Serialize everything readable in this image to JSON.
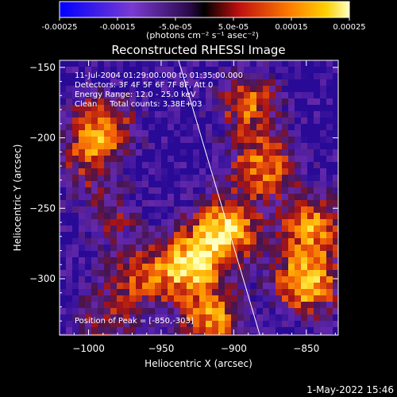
{
  "colorbar": {
    "tick_labels": [
      "-0.00025",
      "-0.00015",
      "-5.0e-05",
      "5.0e-05",
      "0.00015",
      "0.00025"
    ],
    "tick_values": [
      -0.00025,
      -0.00015,
      -5e-05,
      5e-05,
      0.00015,
      0.00025
    ],
    "range": [
      -0.00025,
      0.00025
    ],
    "units_label": "(photons cm⁻² s⁻¹ asec⁻²)"
  },
  "chart_data": {
    "type": "heatmap",
    "title": "Reconstructed RHESSI Image",
    "xlabel": "Heliocentric X (arcsec)",
    "ylabel": "Heliocentric Y (arcsec)",
    "xlim": [
      -1020,
      -828
    ],
    "ylim": [
      -340,
      -145
    ],
    "xticks": [
      -1000,
      -950,
      -900,
      -850
    ],
    "yticks": [
      -150,
      -200,
      -250,
      -300
    ],
    "xtick_labels": [
      "−1000",
      "−950",
      "−900",
      "−850"
    ],
    "ytick_labels": [
      "−150",
      "−200",
      "−250",
      "−300"
    ],
    "limb_line": {
      "x": [
        -938,
        -882
      ],
      "y": [
        -145,
        -340
      ]
    },
    "annotations": [
      "11-Jul-2004 01:29:00.000 to 01:35:00.000",
      "Detectors: 3F 4F 5F 6F 7F 8F, Att 0",
      "Energy Range: 12.0 - 25.0 keV",
      "Clean     Total counts: 3.38E+03"
    ],
    "peak_label": "Position of Peak = [-850,-303]",
    "peak": [
      -850,
      -303
    ],
    "sources": [
      {
        "x": -905,
        "y": -265,
        "amp": 1.0
      },
      {
        "x": -930,
        "y": -290,
        "amp": 1.0
      },
      {
        "x": -915,
        "y": -330,
        "amp": 0.8
      },
      {
        "x": -890,
        "y": -175,
        "amp": 0.7
      },
      {
        "x": -880,
        "y": -220,
        "amp": 0.8
      },
      {
        "x": -850,
        "y": -303,
        "amp": 1.0
      },
      {
        "x": -845,
        "y": -262,
        "amp": 0.8
      },
      {
        "x": -990,
        "y": -190,
        "amp": 0.7
      },
      {
        "x": -1000,
        "y": -215,
        "amp": 0.5
      },
      {
        "x": -965,
        "y": -300,
        "amp": 0.6
      },
      {
        "x": -985,
        "y": -255,
        "amp": 0.4
      },
      {
        "x": -990,
        "y": -330,
        "amp": 0.45
      }
    ]
  },
  "footer": {
    "timestamp": "1-May-2022 15:46"
  }
}
